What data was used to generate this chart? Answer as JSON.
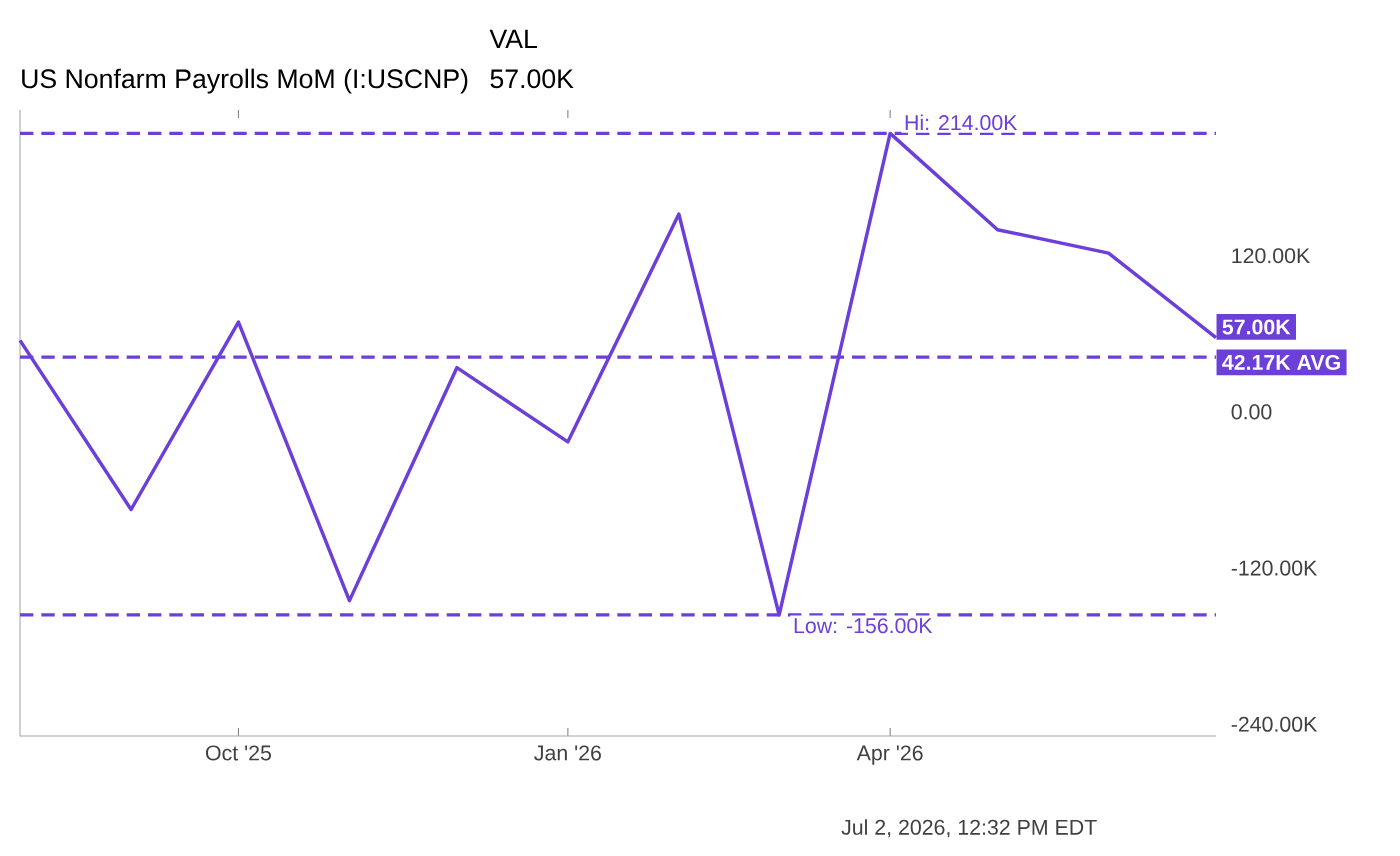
{
  "chart_data": {
    "type": "line",
    "legend_title": "VAL",
    "legend": "top",
    "marker": "none",
    "line_style": "solid",
    "x": [
      "2025-08",
      "2025-09",
      "2025-10",
      "2025-11",
      "2025-12",
      "2026-01",
      "2026-02",
      "2026-03",
      "2026-04",
      "2026-05",
      "2026-06",
      "2026-07"
    ],
    "series": [
      {
        "name": "US Nonfarm Payrolls MoM (I:USCNP)",
        "color": "#6c3fd8",
        "values": [
          55,
          -75,
          69,
          -145,
          34,
          -23,
          152,
          -156,
          214,
          140,
          122,
          57
        ],
        "value_labels": [
          null,
          null,
          null,
          null,
          null,
          null,
          null,
          null,
          null,
          null,
          null,
          "57.00K"
        ]
      }
    ],
    "xlim": [
      "2025-08",
      "2026-07"
    ],
    "xticks": [
      {
        "value": "2025-10",
        "label": "Oct '25"
      },
      {
        "value": "2026-01",
        "label": "Jan '26"
      },
      {
        "value": "2026-04",
        "label": "Apr '26"
      }
    ],
    "ylim": [
      -249,
      232
    ],
    "yticks": [
      {
        "value": 120,
        "label": "120.00K"
      },
      {
        "value": 0,
        "label": "0.00"
      },
      {
        "value": -120,
        "label": "-120.00K"
      },
      {
        "value": -240,
        "label": "-240.00K"
      }
    ],
    "ref_lines": [
      {
        "axis": "y",
        "value": 214,
        "label": "Hi: 214.00K",
        "color": "#6c3fd8",
        "line_style": "dashed"
      },
      {
        "axis": "y",
        "value": 42.17,
        "label": "42.17K AVG",
        "color": "#6c3fd8",
        "line_style": "dashed"
      },
      {
        "axis": "y",
        "value": -156,
        "label": "Low: -156.00K",
        "color": "#6c3fd8",
        "line_style": "dashed"
      }
    ],
    "annotations": [
      "Jul 2, 2026, 12:32 PM EDT"
    ]
  }
}
